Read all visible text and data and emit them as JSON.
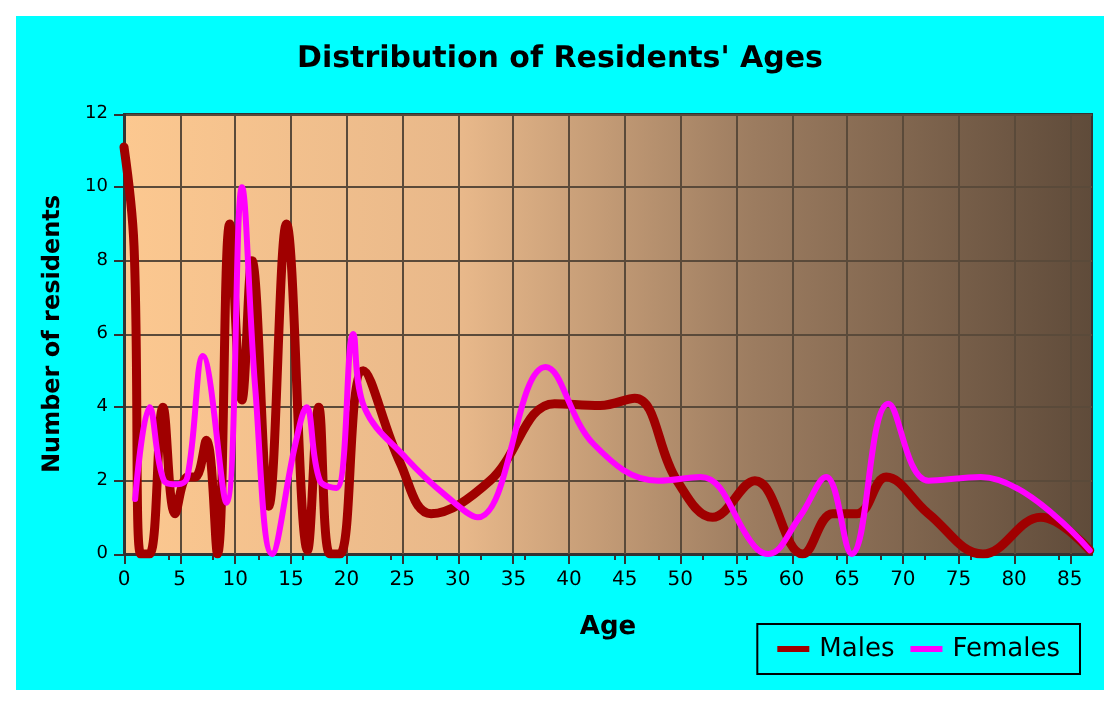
{
  "chart_data": {
    "type": "line",
    "title": "Distribution of Residents' Ages",
    "xlabel": "Age",
    "ylabel": "Number of residents",
    "xlim": [
      0,
      87
    ],
    "xticks": [
      0,
      5,
      10,
      15,
      20,
      25,
      30,
      35,
      40,
      45,
      50,
      55,
      60,
      65,
      70,
      75,
      80,
      85
    ],
    "ylim": [
      0,
      12
    ],
    "yticks": [
      0,
      2,
      4,
      6,
      8,
      10,
      12
    ],
    "grid": true,
    "legend": "bottom right",
    "marker": "none",
    "line_style": "solid",
    "series": [
      {
        "name": "Males",
        "color": "#a00000",
        "x": [
          0,
          0.9,
          1.5,
          2.3,
          3.5,
          4.6,
          5.7,
          6.4,
          7.4,
          8.4,
          9.5,
          10.6,
          11.5,
          13,
          14.6,
          16.5,
          17.5,
          18.5,
          19.4,
          21.5,
          24.8,
          27.6,
          32.9,
          38.7,
          42.8,
          45.9,
          49.7,
          52.9,
          56.7,
          61,
          63.7,
          65.9,
          68.5,
          72.3,
          77.2,
          82.4,
          86.8
        ],
        "values": [
          11.1,
          8.4,
          0,
          0,
          4,
          1.1,
          2.1,
          2.1,
          3.1,
          0,
          9,
          4.2,
          8,
          1.3,
          9,
          0.1,
          4,
          0,
          0,
          5,
          2.5,
          1.1,
          2,
          4.1,
          4.05,
          4.25,
          2,
          1,
          2,
          0,
          1.1,
          1.1,
          2.1,
          1.1,
          0,
          1,
          0.1
        ]
      },
      {
        "name": "Females",
        "color": "#ff00ff",
        "x": [
          1,
          2.3,
          3.6,
          4.8,
          5.7,
          7.1,
          9.2,
          10.6,
          11.8,
          13.3,
          15.4,
          16.4,
          17.6,
          19.1,
          20.6,
          21.6,
          25.4,
          28.9,
          31.8,
          37.9,
          42.2,
          48,
          51.8,
          56.7,
          57.9,
          60.7,
          63.1,
          65.4,
          68.7,
          72.3,
          77,
          86.8
        ],
        "values": [
          1.5,
          4,
          2,
          1.9,
          2.1,
          5.4,
          1.4,
          10,
          4.5,
          0,
          3,
          4,
          2,
          1.8,
          6,
          4,
          2.6,
          1.6,
          1,
          5.1,
          3,
          2,
          2.1,
          0.2,
          0,
          1,
          2.1,
          0,
          4.1,
          2,
          2.1,
          0.1
        ]
      }
    ]
  }
}
